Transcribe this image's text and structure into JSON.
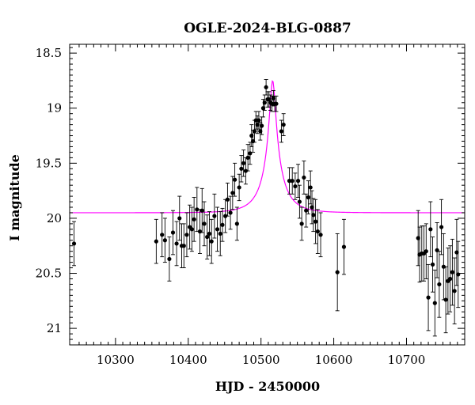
{
  "chart_data": {
    "type": "scatter",
    "title": "OGLE-2024-BLG-0887",
    "xlabel": "HJD - 2450000",
    "ylabel": "I magnitude",
    "xlim": [
      10237,
      10780
    ],
    "ylim": [
      21.15,
      18.42
    ],
    "y_inverted": true,
    "x_ticks": [
      10300,
      10400,
      10500,
      10600,
      10700
    ],
    "x_tick_labels": [
      "10300",
      "10400",
      "10500",
      "10600",
      "10700"
    ],
    "y_ticks": [
      18.5,
      19,
      19.5,
      20,
      20.5,
      21
    ],
    "y_tick_labels": [
      "18.5",
      "19",
      "19.5",
      "20",
      "20.5",
      "21"
    ],
    "grid": false,
    "colors": {
      "data": "#000000",
      "model": "#ff00ff"
    },
    "model": {
      "name": "",
      "t0": 10516,
      "tE": 30,
      "u0": 0.13,
      "I_source": 19.95,
      "blend_fraction": 0.3
    },
    "series": [
      {
        "name": "",
        "x": [
          10243,
          10356,
          10364,
          10368,
          10374,
          10379,
          10384,
          10388,
          10391,
          10394,
          10398,
          10402,
          10405,
          10408,
          10412,
          10416,
          10419,
          10422,
          10426,
          10429,
          10432,
          10436,
          10440,
          10444,
          10447,
          10451,
          10454,
          10458,
          10461,
          10464,
          10467,
          10470,
          10473,
          10476,
          10479,
          10482,
          10485,
          10487,
          10489,
          10491,
          10493,
          10495,
          10497,
          10499,
          10501,
          10503,
          10505,
          10507,
          10509,
          10511,
          10513,
          10515,
          10517,
          10519,
          10521,
          10528,
          10531,
          10539,
          10543,
          10547,
          10551,
          10553,
          10556,
          10559,
          10562,
          10565,
          10568,
          10570,
          10572,
          10575,
          10578,
          10582,
          10605,
          10614,
          10716,
          10718,
          10721,
          10724,
          10727,
          10730,
          10733,
          10736,
          10739,
          10742,
          10745,
          10748,
          10751,
          10754,
          10757,
          10760,
          10763,
          10766,
          10769,
          10771
        ],
        "y": [
          20.23,
          20.21,
          20.15,
          20.2,
          20.37,
          20.13,
          20.23,
          20.0,
          20.25,
          20.25,
          20.15,
          20.08,
          20.1,
          20.01,
          19.92,
          20.12,
          19.93,
          20.05,
          20.17,
          20.14,
          20.21,
          19.98,
          20.1,
          20.14,
          20.06,
          19.98,
          19.83,
          19.95,
          19.77,
          19.65,
          20.05,
          19.72,
          19.55,
          19.5,
          19.57,
          19.45,
          19.41,
          19.25,
          19.3,
          19.21,
          19.11,
          19.15,
          19.11,
          19.21,
          19.16,
          19.0,
          18.95,
          18.81,
          18.92,
          18.92,
          18.95,
          18.96,
          18.91,
          18.96,
          18.96,
          19.21,
          19.15,
          19.66,
          19.66,
          19.71,
          19.66,
          19.85,
          20.05,
          19.63,
          19.93,
          19.81,
          19.72,
          19.9,
          19.97,
          20.03,
          20.12,
          20.15,
          20.49,
          20.26,
          20.18,
          20.33,
          20.32,
          20.32,
          20.3,
          20.72,
          20.1,
          20.42,
          20.77,
          20.29,
          20.6,
          20.08,
          20.44,
          20.74,
          20.57,
          20.55,
          20.49,
          20.66,
          20.31,
          20.51
        ],
        "yerr": [
          0.2,
          0.2,
          0.2,
          0.2,
          0.2,
          0.2,
          0.2,
          0.2,
          0.2,
          0.2,
          0.2,
          0.2,
          0.2,
          0.2,
          0.2,
          0.2,
          0.2,
          0.2,
          0.2,
          0.2,
          0.2,
          0.2,
          0.2,
          0.2,
          0.15,
          0.15,
          0.15,
          0.15,
          0.15,
          0.15,
          0.15,
          0.12,
          0.12,
          0.12,
          0.12,
          0.12,
          0.1,
          0.1,
          0.1,
          0.1,
          0.08,
          0.08,
          0.08,
          0.08,
          0.08,
          0.08,
          0.07,
          0.07,
          0.07,
          0.07,
          0.07,
          0.07,
          0.07,
          0.07,
          0.07,
          0.1,
          0.1,
          0.12,
          0.12,
          0.12,
          0.15,
          0.15,
          0.15,
          0.15,
          0.15,
          0.15,
          0.15,
          0.15,
          0.15,
          0.2,
          0.2,
          0.2,
          0.35,
          0.25,
          0.25,
          0.25,
          0.25,
          0.25,
          0.25,
          0.3,
          0.25,
          0.25,
          0.3,
          0.25,
          0.3,
          0.25,
          0.3,
          0.3,
          0.3,
          0.3,
          0.3,
          0.3,
          0.3,
          0.3
        ]
      }
    ]
  }
}
